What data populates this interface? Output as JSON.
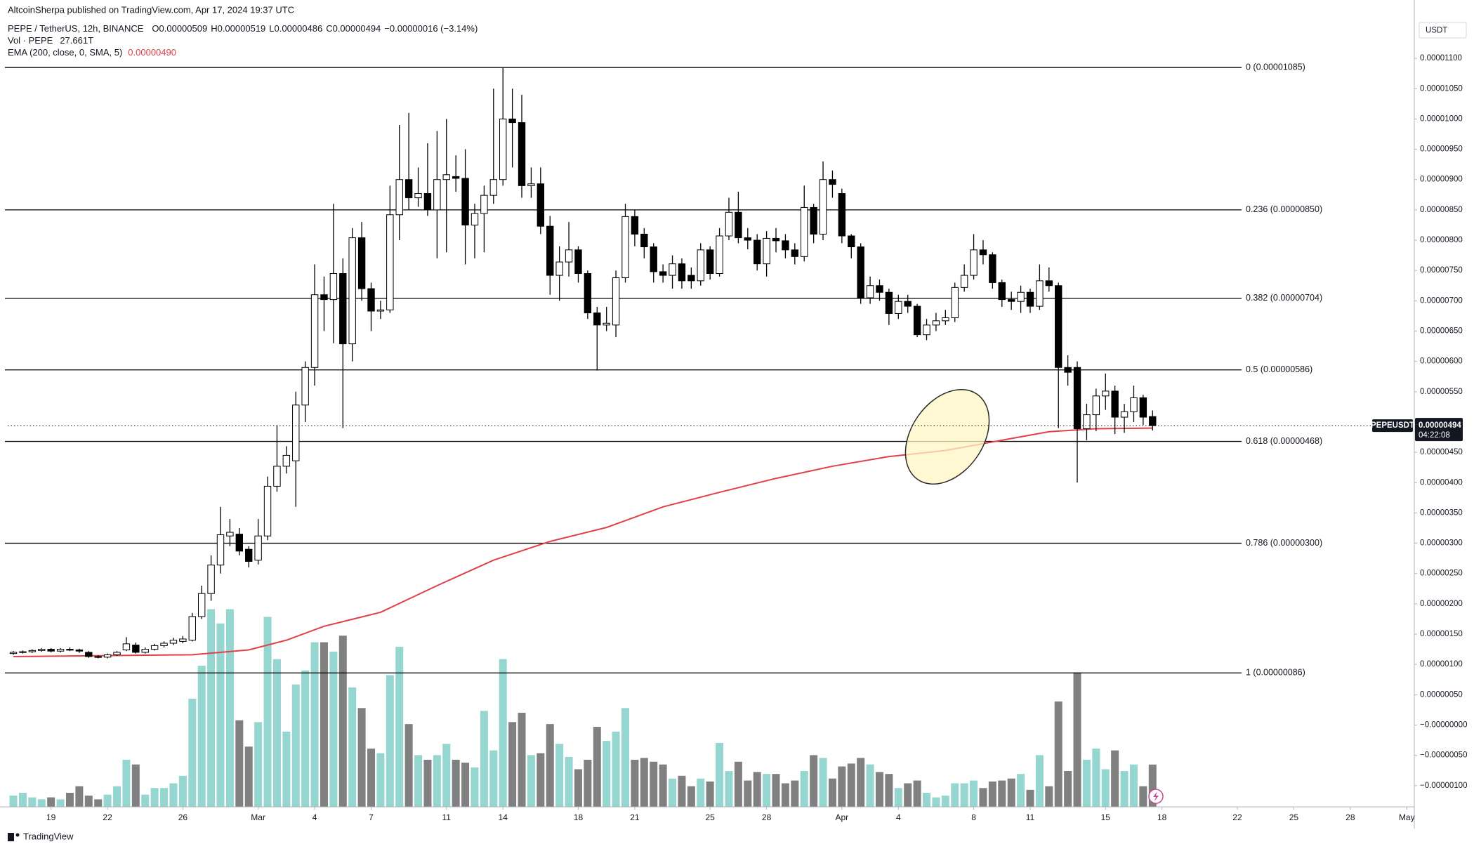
{
  "header": {
    "published": "AltcoinSherpa published on TradingView.com, Apr 17, 2024 19:37 UTC",
    "symbol": "PEPE / TetherUS, 12h, BINANCE",
    "ohlc": [
      "O0.00000509",
      "H0.00000519",
      "L0.00000486",
      "C0.00000494",
      "−0.00000016 (−3.14%)"
    ],
    "volume_name": "Vol · PEPE",
    "volume_value": "27.661T",
    "ema_name": "EMA (200, close, 0, SMA, 5)",
    "ema_value": "0.00000490",
    "footer": "TradingView"
  },
  "chart_data": {
    "type": "candlestick",
    "currency": "USDT",
    "symbol_tag": "PEPEUSDT",
    "last_price_label": "0.00000494",
    "countdown": "04:22:08",
    "grid": false,
    "up_color": "#ffffff",
    "down_color": "#000000",
    "xlim": [
      16.7,
      91.4
    ],
    "xticks": [
      19,
      22,
      26,
      {
        "value": 30,
        "label": "Mar"
      },
      {
        "value": 33,
        "label": "4"
      },
      {
        "value": 36,
        "label": "7"
      },
      {
        "value": 40,
        "label": "11"
      },
      {
        "value": 43,
        "label": "14"
      },
      {
        "value": 47,
        "label": "18"
      },
      {
        "value": 50,
        "label": "21"
      },
      {
        "value": 54,
        "label": "25"
      },
      {
        "value": 57,
        "label": "28"
      },
      {
        "value": 61,
        "label": "Apr"
      },
      {
        "value": 64,
        "label": "4"
      },
      {
        "value": 68,
        "label": "8"
      },
      {
        "value": 71,
        "label": "11"
      },
      {
        "value": 75,
        "label": "15"
      },
      {
        "value": 78,
        "label": "18"
      },
      {
        "value": 82,
        "label": "22"
      },
      {
        "value": 85,
        "label": "25"
      },
      {
        "value": 88,
        "label": "28"
      },
      {
        "value": 91,
        "label": "May"
      }
    ],
    "ylim": [
      -1.35e-06,
      1.165e-05
    ],
    "yticks": [
      {
        "value": 1.1e-05,
        "label": "0.00001100"
      },
      {
        "value": 1.05e-05,
        "label": "0.00001050"
      },
      {
        "value": 1e-05,
        "label": "0.00001000"
      },
      {
        "value": 9.5e-06,
        "label": "0.00000950"
      },
      {
        "value": 9e-06,
        "label": "0.00000900"
      },
      {
        "value": 8.5e-06,
        "label": "0.00000850"
      },
      {
        "value": 8e-06,
        "label": "0.00000800"
      },
      {
        "value": 7.5e-06,
        "label": "0.00000750"
      },
      {
        "value": 7e-06,
        "label": "0.00000700"
      },
      {
        "value": 6.5e-06,
        "label": "0.00000650"
      },
      {
        "value": 6e-06,
        "label": "0.00000600"
      },
      {
        "value": 5.5e-06,
        "label": "0.00000550"
      },
      {
        "value": 5e-06,
        "label": "0.00000500"
      },
      {
        "value": 4.5e-06,
        "label": "0.00000450"
      },
      {
        "value": 4e-06,
        "label": "0.00000400"
      },
      {
        "value": 3.5e-06,
        "label": "0.00000350"
      },
      {
        "value": 3e-06,
        "label": "0.00000300"
      },
      {
        "value": 2.5e-06,
        "label": "0.00000250"
      },
      {
        "value": 2e-06,
        "label": "0.00000200"
      },
      {
        "value": 1.5e-06,
        "label": "0.00000150"
      },
      {
        "value": 1e-06,
        "label": "0.00000100"
      },
      {
        "value": 5e-07,
        "label": "0.00000050"
      },
      {
        "value": 0,
        "label": "−0.00000000"
      },
      {
        "value": -5e-07,
        "label": "−0.00000050"
      },
      {
        "value": -1e-06,
        "label": "−0.00000100"
      }
    ],
    "x": [
      17,
      17.5,
      18,
      18.5,
      19,
      19.5,
      20,
      20.5,
      21,
      21.5,
      22,
      22.5,
      23,
      23.5,
      24,
      24.5,
      25,
      25.5,
      26,
      26.5,
      27,
      27.5,
      28,
      28.5,
      29,
      29.5,
      30,
      30.5,
      31,
      31.5,
      32,
      32.5,
      33,
      33.5,
      34,
      34.5,
      35,
      35.5,
      36,
      36.5,
      37,
      37.5,
      38,
      38.5,
      39,
      39.5,
      40,
      40.5,
      41,
      41.5,
      42,
      42.5,
      43,
      43.5,
      44,
      44.5,
      45,
      45.5,
      46,
      46.5,
      47,
      47.5,
      48,
      48.5,
      49,
      49.5,
      50,
      50.5,
      51,
      51.5,
      52,
      52.5,
      53,
      53.5,
      54,
      54.5,
      55,
      55.5,
      56,
      56.5,
      57,
      57.5,
      58,
      58.5,
      59,
      59.5,
      60,
      60.5,
      61,
      61.5,
      62,
      62.5,
      63,
      63.5,
      64,
      64.5,
      65,
      65.5,
      66,
      66.5,
      67,
      67.5,
      68,
      68.5,
      69,
      69.5,
      70,
      70.5,
      71,
      71.5,
      72,
      72.5,
      73,
      73.5,
      74,
      74.5,
      75,
      75.5,
      76,
      76.5,
      77,
      77.5
    ],
    "open": [
      1.18e-06,
      1.2e-06,
      1.21e-06,
      1.23e-06,
      1.25e-06,
      1.22e-06,
      1.25e-06,
      1.24e-06,
      1.2e-06,
      1.13e-06,
      1.12e-06,
      1.16e-06,
      1.24e-06,
      1.32e-06,
      1.2e-06,
      1.25e-06,
      1.31e-06,
      1.35e-06,
      1.38e-06,
      1.4e-06,
      1.79e-06,
      2.17e-06,
      2.64e-06,
      3.12e-06,
      3.15e-06,
      2.9e-06,
      2.72e-06,
      3.12e-06,
      3.94e-06,
      4.27e-06,
      4.36e-06,
      5.28e-06,
      5.9e-06,
      7.1e-06,
      7.02e-06,
      7.45e-06,
      6.29e-06,
      8.04e-06,
      7.2e-06,
      6.83e-06,
      6.85e-06,
      8.42e-06,
      9e-06,
      8.7e-06,
      8.77e-06,
      8.5e-06,
      9e-06,
      9.05e-06,
      9.02e-06,
      8.25e-06,
      8.44e-06,
      8.74e-06,
      9e-06,
      1e-05,
      9.94e-06,
      8.9e-06,
      8.93e-06,
      8.23e-06,
      7.42e-06,
      7.64e-06,
      7.84e-06,
      7.45e-06,
      6.8e-06,
      6.6e-06,
      6.6e-06,
      7.38e-06,
      8.39e-06,
      8.1e-06,
      7.89e-06,
      7.48e-06,
      7.42e-06,
      7.61e-06,
      7.42e-06,
      7.33e-06,
      7.84e-06,
      7.45e-06,
      8.07e-06,
      8.46e-06,
      8.04e-06,
      8e-06,
      7.61e-06,
      8.03e-06,
      7.99e-06,
      7.84e-06,
      7.73e-06,
      8.54e-06,
      8.1e-06,
      9e-06,
      8.77e-06,
      8.07e-06,
      7.89e-06,
      7.05e-06,
      7.25e-06,
      7.14e-06,
      6.79e-06,
      6.99e-06,
      6.91e-06,
      6.44e-06,
      6.6e-06,
      6.67e-06,
      6.72e-06,
      7.22e-06,
      7.42e-06,
      7.84e-06,
      7.76e-06,
      7.3e-06,
      7.02e-06,
      6.99e-06,
      7.14e-06,
      6.91e-06,
      7.33e-06,
      7.25e-06,
      5.9e-06,
      5.9e-06,
      4.89e-06,
      5.12e-06,
      5.43e-06,
      5.51e-06,
      5.08e-06,
      5.17e-06,
      5.4e-06,
      5.09e-06
    ],
    "high": [
      1.22e-06,
      1.23e-06,
      1.25e-06,
      1.27e-06,
      1.27e-06,
      1.27e-06,
      1.28e-06,
      1.26e-06,
      1.22e-06,
      1.15e-06,
      1.18e-06,
      1.22e-06,
      1.45e-06,
      1.36e-06,
      1.28e-06,
      1.34e-06,
      1.38e-06,
      1.44e-06,
      1.47e-06,
      1.85e-06,
      2.3e-06,
      2.8e-06,
      3.6e-06,
      3.4e-06,
      3.25e-06,
      2.95e-06,
      3.4e-06,
      4.1e-06,
      4.95e-06,
      4.6e-06,
      5.5e-06,
      6e-06,
      7.6e-06,
      7.4e-06,
      8.6e-06,
      7.7e-06,
      8.2e-06,
      8.3e-06,
      7.3e-06,
      7e-06,
      8.9e-06,
      9.9e-06,
      1.01e-05,
      9.2e-06,
      9.6e-06,
      9.8e-06,
      1e-05,
      9.4e-06,
      9.5e-06,
      8.6e-06,
      8.9e-06,
      1.05e-05,
      1.084e-05,
      1.05e-05,
      1.04e-05,
      9.2e-06,
      9.2e-06,
      8.4e-06,
      7.9e-06,
      8.3e-06,
      7.9e-06,
      7.5e-06,
      6.9e-06,
      6.9e-06,
      7.5e-06,
      8.6e-06,
      8.5e-06,
      8.2e-06,
      7.95e-06,
      7.6e-06,
      7.75e-06,
      7.7e-06,
      7.55e-06,
      7.95e-06,
      7.9e-06,
      8.2e-06,
      8.7e-06,
      8.8e-06,
      8.2e-06,
      8.1e-06,
      8.15e-06,
      8.2e-06,
      8.1e-06,
      7.95e-06,
      8.9e-06,
      8.6e-06,
      9.3e-06,
      9.15e-06,
      8.85e-06,
      8.1e-06,
      7.95e-06,
      7.4e-06,
      7.35e-06,
      7.2e-06,
      7.1e-06,
      7.1e-06,
      6.95e-06,
      6.7e-06,
      6.8e-06,
      6.85e-06,
      7.3e-06,
      7.6e-06,
      8.1e-06,
      8e-06,
      7.8e-06,
      7.35e-06,
      7.15e-06,
      7.25e-06,
      7.2e-06,
      7.6e-06,
      7.55e-06,
      7.3e-06,
      6.1e-06,
      6e-06,
      5.3e-06,
      5.55e-06,
      5.8e-06,
      5.6e-06,
      5.3e-06,
      5.6e-06,
      5.45e-06,
      5.19e-06
    ],
    "low": [
      1.16e-06,
      1.18e-06,
      1.19e-06,
      1.21e-06,
      1.2e-06,
      1.2e-06,
      1.22e-06,
      1.19e-06,
      1.11e-06,
      1.1e-06,
      1.1e-06,
      1.14e-06,
      1.22e-06,
      1.18e-06,
      1.18e-06,
      1.23e-06,
      1.28e-06,
      1.32e-06,
      1.35e-06,
      1.38e-06,
      1.75e-06,
      2.05e-06,
      2.5e-06,
      2.95e-06,
      2.8e-06,
      2.6e-06,
      2.65e-06,
      3.05e-06,
      3.85e-06,
      4.15e-06,
      3.6e-06,
      5e-06,
      5.6e-06,
      6.5e-06,
      6.3e-06,
      4.9e-06,
      6e-06,
      7e-06,
      6.5e-06,
      6.7e-06,
      6.8e-06,
      8e-06,
      8.5e-06,
      8.55e-06,
      8.4e-06,
      7.7e-06,
      7.8e-06,
      8.8e-06,
      7.6e-06,
      7.7e-06,
      7.8e-06,
      8.6e-06,
      8.9e-06,
      9.2e-06,
      8.7e-06,
      8.7e-06,
      8.1e-06,
      7.1e-06,
      7e-06,
      7.4e-06,
      7.3e-06,
      6.7e-06,
      5.85e-06,
      6.5e-06,
      6.4e-06,
      7.3e-06,
      7.9e-06,
      7.7e-06,
      7.3e-06,
      7.3e-06,
      7.2e-06,
      7.2e-06,
      7.2e-06,
      7.25e-06,
      7.35e-06,
      7.4e-06,
      8e-06,
      7.95e-06,
      7.85e-06,
      7.5e-06,
      7.4e-06,
      7.8e-06,
      7.7e-06,
      7.6e-06,
      7.65e-06,
      7.95e-06,
      8e-06,
      8.7e-06,
      7.95e-06,
      7.7e-06,
      6.95e-06,
      6.95e-06,
      7e-06,
      6.6e-06,
      6.7e-06,
      6.8e-06,
      6.4e-06,
      6.35e-06,
      6.5e-06,
      6.6e-06,
      6.65e-06,
      7.15e-06,
      7.35e-06,
      7.6e-06,
      7.2e-06,
      6.9e-06,
      6.85e-06,
      6.8e-06,
      6.8e-06,
      6.85e-06,
      7.15e-06,
      4.9e-06,
      5.6e-06,
      4e-06,
      4.7e-06,
      4.85e-06,
      5.2e-06,
      4.8e-06,
      4.82e-06,
      5e-06,
      4.95e-06,
      4.86e-06
    ],
    "close": [
      1.2e-06,
      1.21e-06,
      1.23e-06,
      1.25e-06,
      1.22e-06,
      1.25e-06,
      1.24e-06,
      1.22e-06,
      1.13e-06,
      1.12e-06,
      1.16e-06,
      1.2e-06,
      1.34e-06,
      1.2e-06,
      1.25e-06,
      1.31e-06,
      1.35e-06,
      1.4e-06,
      1.42e-06,
      1.79e-06,
      2.17e-06,
      2.64e-06,
      3.14e-06,
      3.18e-06,
      2.87e-06,
      2.7e-06,
      3.12e-06,
      3.94e-06,
      4.27e-06,
      4.45e-06,
      5.28e-06,
      5.9e-06,
      7.1e-06,
      7.02e-06,
      7.45e-06,
      6.29e-06,
      8.04e-06,
      7.2e-06,
      6.83e-06,
      6.85e-06,
      8.42e-06,
      9e-06,
      8.7e-06,
      8.77e-06,
      8.5e-06,
      9e-06,
      9.08e-06,
      9.02e-06,
      8.25e-06,
      8.44e-06,
      8.74e-06,
      9e-06,
      1e-05,
      9.94e-06,
      8.9e-06,
      8.93e-06,
      8.23e-06,
      7.42e-06,
      7.64e-06,
      7.84e-06,
      7.45e-06,
      6.8e-06,
      6.6e-06,
      6.63e-06,
      7.38e-06,
      8.39e-06,
      8.1e-06,
      7.89e-06,
      7.48e-06,
      7.42e-06,
      7.61e-06,
      7.33e-06,
      7.33e-06,
      7.84e-06,
      7.45e-06,
      8.07e-06,
      8.46e-06,
      8.04e-06,
      8e-06,
      7.61e-06,
      8.03e-06,
      7.99e-06,
      7.84e-06,
      7.73e-06,
      8.54e-06,
      8.1e-06,
      9e-06,
      8.92e-06,
      8.07e-06,
      7.89e-06,
      7.05e-06,
      7.25e-06,
      7.14e-06,
      6.79e-06,
      6.99e-06,
      6.91e-06,
      6.44e-06,
      6.6e-06,
      6.67e-06,
      6.72e-06,
      7.22e-06,
      7.42e-06,
      7.84e-06,
      7.76e-06,
      7.3e-06,
      7.02e-06,
      6.99e-06,
      7.14e-06,
      6.91e-06,
      7.33e-06,
      7.25e-06,
      5.9e-06,
      5.82e-06,
      4.89e-06,
      5.12e-06,
      5.43e-06,
      5.51e-06,
      5.08e-06,
      5.17e-06,
      5.4e-06,
      5.08e-06,
      4.94e-06
    ],
    "volume": {
      "up_color": "#8fd4cd",
      "down_color": "#808080",
      "ylim": [
        0,
        515
      ],
      "values": [
        7.4,
        9.2,
        6.2,
        4.9,
        6.2,
        4.9,
        9.2,
        13.5,
        7.4,
        4.9,
        8.0,
        13.5,
        30.8,
        27.7,
        8.0,
        12.3,
        12.3,
        15.4,
        20.3,
        70.7,
        92.3,
        129.2,
        119.9,
        129.2,
        56.6,
        39.4,
        55.4,
        124.2,
        96.6,
        49.2,
        80.0,
        89.2,
        107.6,
        107.6,
        101.5,
        111.9,
        78.1,
        64.6,
        38.1,
        35.1,
        86.1,
        104.6,
        54.1,
        33.8,
        30.8,
        33.8,
        41.2,
        30.8,
        28.9,
        25.8,
        62.7,
        36.9,
        96.6,
        55.4,
        61.5,
        33.8,
        35.1,
        54.1,
        41.2,
        32.6,
        24.6,
        30.8,
        52.3,
        43.1,
        49.2,
        64.6,
        30.8,
        32.0,
        29.5,
        27.7,
        18.5,
        20.3,
        13.5,
        18.5,
        16.6,
        41.8,
        23.4,
        29.5,
        17.2,
        22.8,
        21.5,
        21.5,
        15.4,
        17.2,
        23.4,
        33.8,
        32.0,
        18.5,
        26.4,
        28.3,
        32.0,
        27.7,
        22.8,
        21.5,
        12.3,
        15.4,
        17.2,
        9.2,
        6.2,
        7.4,
        15.4,
        15.4,
        17.2,
        12.3,
        16.6,
        17.2,
        18.5,
        21.5,
        11.1,
        33.8,
        13.5,
        68.9,
        23.4,
        87.9,
        30.8,
        38.1,
        24.6,
        36.9,
        23.4,
        27.7,
        13.5,
        27.661
      ]
    },
    "ema": {
      "color": "#e0404a",
      "x": [
        17,
        26.5,
        29.5,
        31.5,
        33.5,
        36.5,
        39.5,
        42.5,
        45.5,
        48.5,
        51.5,
        54.5,
        57.5,
        60.5,
        63.5,
        66.5,
        69.5,
        72,
        74.5,
        77.5
      ],
      "values": [
        1.13e-06,
        1.16e-06,
        1.24e-06,
        1.4e-06,
        1.63e-06,
        1.86e-06,
        2.3e-06,
        2.72e-06,
        3.03e-06,
        3.26e-06,
        3.6e-06,
        3.84e-06,
        4.07e-06,
        4.27e-06,
        4.43e-06,
        4.53e-06,
        4.7e-06,
        4.84e-06,
        4.89e-06,
        4.9e-06
      ]
    },
    "fib_levels": [
      {
        "label": "0 (0.00001085)",
        "value": 1.085e-05
      },
      {
        "label": "0.236 (0.00000850)",
        "value": 8.5e-06
      },
      {
        "label": "0.382 (0.00000704)",
        "value": 7.04e-06
      },
      {
        "label": "0.5 (0.00000586)",
        "value": 5.86e-06
      },
      {
        "label": "0.618 (0.00000468)",
        "value": 4.68e-06
      },
      {
        "label": "0.786 (0.00000300)",
        "value": 3e-06
      },
      {
        "label": "1 (0.00000086)",
        "value": 8.6e-07
      }
    ]
  }
}
